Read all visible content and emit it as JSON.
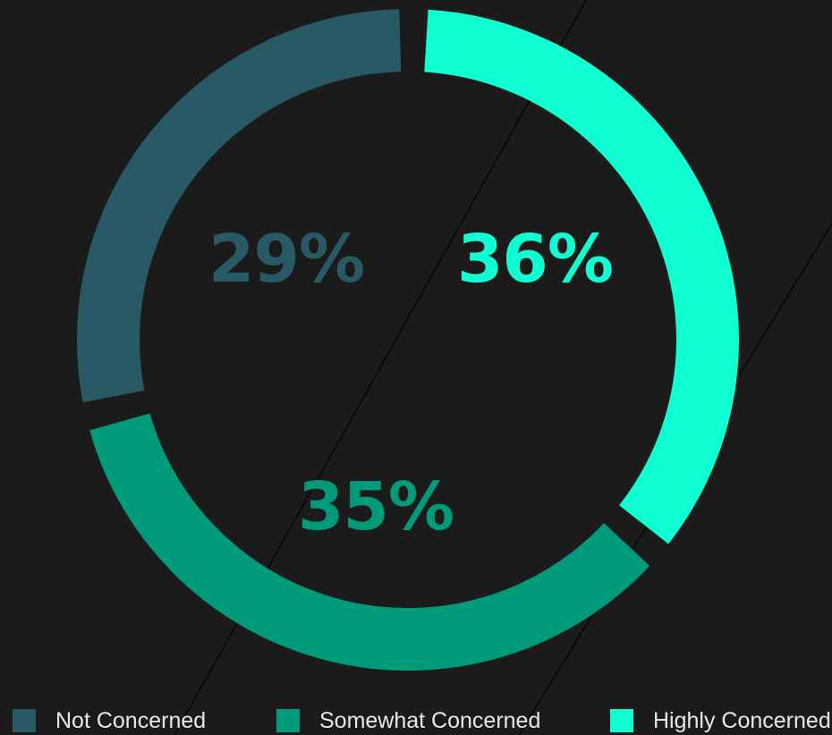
{
  "chart_data": {
    "type": "pie",
    "style": "donut",
    "slices": [
      {
        "name": "Not Concerned",
        "value": 29,
        "label": "29%",
        "color": "#275a65"
      },
      {
        "name": "Somewhat Concerned",
        "value": 35,
        "label": "35%",
        "color": "#009b7b"
      },
      {
        "name": "Highly Concerned",
        "value": 36,
        "label": "36%",
        "color": "#10ffd2"
      }
    ],
    "legend_placement": "bottom"
  },
  "legend": {
    "items": [
      {
        "label": "Not Concerned",
        "color": "#275a65"
      },
      {
        "label": "Somewhat Concerned",
        "color": "#009b7b"
      },
      {
        "label": "Highly Concerned",
        "color": "#10ffd2"
      }
    ]
  }
}
